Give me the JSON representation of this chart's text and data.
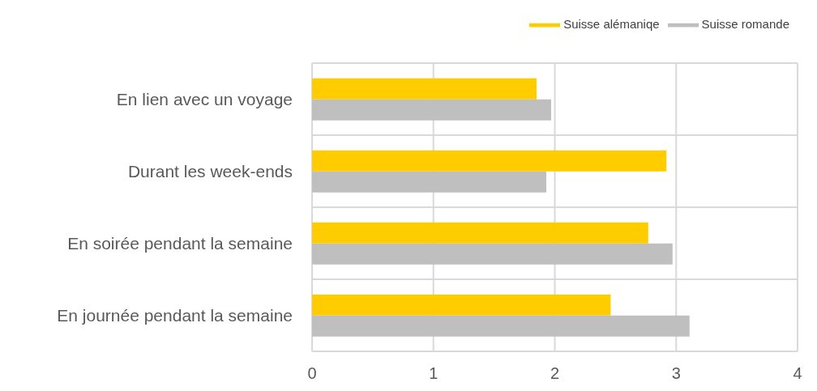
{
  "chart_data": {
    "type": "bar",
    "orientation": "horizontal",
    "categories": [
      "En lien avec un voyage",
      "Durant les week-ends",
      "En soirée pendant la semaine",
      "En journée pendant la semaine"
    ],
    "series": [
      {
        "name": "Suisse alémaniqe",
        "color": "#ffcc00",
        "values": [
          1.85,
          2.92,
          2.77,
          2.46
        ]
      },
      {
        "name": "Suisse romande",
        "color": "#bfbfbf",
        "values": [
          1.97,
          1.93,
          2.97,
          3.11
        ]
      }
    ],
    "xlim": [
      0,
      4
    ],
    "xticks": [
      0,
      1,
      2,
      3,
      4
    ],
    "grid": true,
    "legend": "top right"
  }
}
